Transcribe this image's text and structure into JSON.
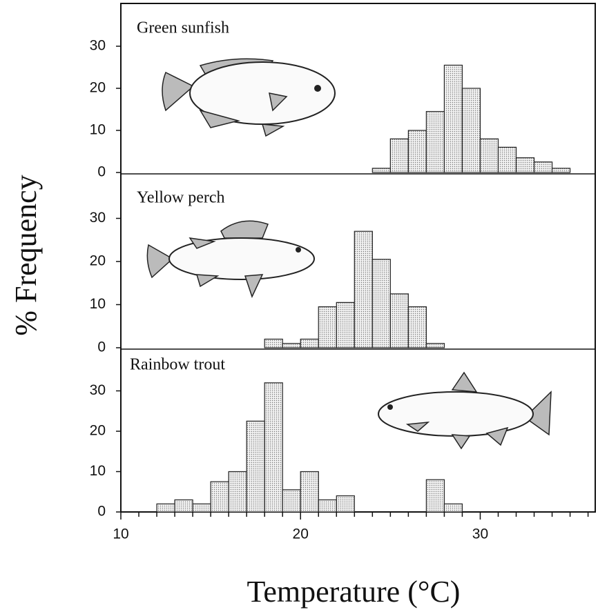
{
  "chart_data": [
    {
      "type": "histogram",
      "title": "Green sunfish",
      "bins": [
        24,
        25,
        26,
        27,
        28,
        29,
        30,
        31,
        32,
        33,
        34,
        35
      ],
      "values": [
        1,
        8,
        10,
        14.5,
        25.5,
        20,
        8,
        6,
        3.5,
        2.5,
        1
      ],
      "xlim": [
        10,
        36.4
      ],
      "ylim": [
        0,
        40
      ],
      "yticks": [
        0,
        10,
        20,
        30
      ]
    },
    {
      "type": "histogram",
      "title": "Yellow perch",
      "ylabel": "% Frequency",
      "bins": [
        18,
        19,
        20,
        21,
        22,
        23,
        24,
        25,
        26,
        27,
        28
      ],
      "values": [
        2,
        1,
        2,
        9.5,
        10.5,
        27,
        20.5,
        12.5,
        9.5,
        1
      ],
      "xlim": [
        10,
        36.4
      ],
      "ylim": [
        0,
        40
      ],
      "yticks": [
        0,
        10,
        20,
        30
      ]
    },
    {
      "type": "histogram",
      "title": "Rainbow trout",
      "xlabel": "Temperature (°C)",
      "bins": [
        12,
        13,
        14,
        15,
        16,
        17,
        18,
        19,
        20,
        21,
        22,
        23,
        24,
        25,
        26,
        27,
        28,
        29
      ],
      "values": [
        2,
        3,
        2,
        7.5,
        10,
        22.5,
        32,
        5.5,
        10,
        3,
        4,
        0,
        0,
        0,
        0,
        8,
        2
      ],
      "xlim": [
        10,
        36.4
      ],
      "ylim": [
        0,
        40
      ],
      "yticks": [
        0,
        10,
        20,
        30
      ],
      "xticks": [
        10,
        20,
        30
      ],
      "xticks_minor": [
        11,
        12,
        13,
        14,
        15,
        16,
        17,
        18,
        19,
        21,
        22,
        23,
        24,
        25,
        26,
        27,
        28,
        29,
        31,
        32,
        33,
        34,
        35,
        36
      ]
    }
  ]
}
